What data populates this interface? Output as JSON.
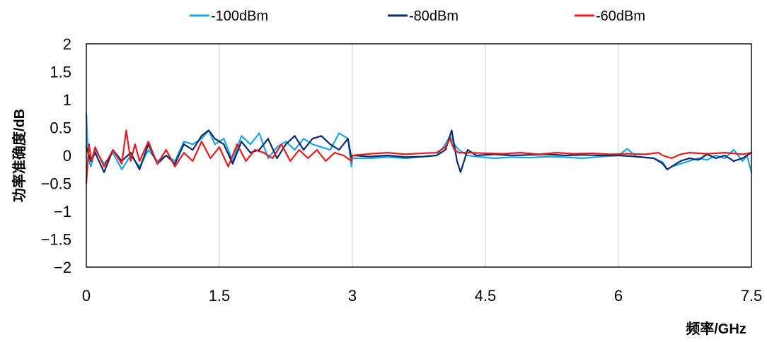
{
  "chart_data": {
    "type": "line",
    "xlabel": "频率/GHz",
    "ylabel": "功率准确度/dB",
    "xlim": [
      0,
      7.5
    ],
    "ylim": [
      -2,
      2
    ],
    "xticks": [
      0,
      1.5,
      3,
      4.5,
      6,
      7.5
    ],
    "xtick_labels": [
      "0",
      "1.5",
      "3",
      "4.5",
      "6",
      "7.5"
    ],
    "yticks": [
      2,
      1.5,
      1,
      0.5,
      0,
      -0.5,
      -1,
      -1.5,
      -2
    ],
    "ytick_labels": [
      "2",
      "1.5",
      "1",
      "0.5",
      "0",
      "−0.5",
      "−1",
      "−1.5",
      "−2"
    ],
    "grid": "vertical",
    "legend": "top",
    "series": [
      {
        "name": "-100dBm",
        "color": "#19a7e6",
        "x": [
          0,
          0.02,
          0.05,
          0.1,
          0.2,
          0.3,
          0.4,
          0.5,
          0.6,
          0.7,
          0.8,
          0.9,
          1.0,
          1.1,
          1.2,
          1.3,
          1.38,
          1.45,
          1.55,
          1.65,
          1.75,
          1.85,
          1.95,
          2.05,
          2.15,
          2.25,
          2.35,
          2.45,
          2.55,
          2.65,
          2.75,
          2.85,
          2.9,
          2.95,
          2.99,
          3.0,
          3.2,
          3.4,
          3.6,
          3.8,
          3.95,
          4.05,
          4.1,
          4.15,
          4.2,
          4.3,
          4.4,
          4.6,
          4.8,
          5.0,
          5.2,
          5.4,
          5.6,
          5.8,
          6.0,
          6.1,
          6.2,
          6.4,
          6.5,
          6.55,
          6.6,
          6.7,
          6.8,
          6.9,
          7.0,
          7.1,
          7.2,
          7.3,
          7.4,
          7.45,
          7.5
        ],
        "y": [
          0.75,
          0.0,
          -0.2,
          0.1,
          -0.15,
          0.05,
          -0.25,
          0.0,
          -0.2,
          0.1,
          -0.1,
          0.0,
          -0.1,
          0.25,
          0.2,
          0.3,
          0.45,
          0.2,
          0.3,
          -0.1,
          0.35,
          0.2,
          0.4,
          -0.05,
          0.15,
          0.25,
          0.1,
          0.3,
          0.2,
          0.15,
          0.1,
          0.4,
          0.35,
          0.3,
          -0.2,
          -0.05,
          -0.05,
          -0.03,
          -0.05,
          -0.02,
          0.0,
          0.2,
          0.35,
          0.2,
          0.1,
          0.0,
          -0.02,
          -0.05,
          -0.03,
          -0.04,
          -0.02,
          -0.03,
          -0.05,
          -0.02,
          0.0,
          0.12,
          -0.02,
          -0.05,
          -0.12,
          -0.25,
          -0.2,
          -0.15,
          -0.1,
          -0.05,
          -0.08,
          0.0,
          -0.05,
          0.1,
          -0.1,
          0.0,
          -0.3
        ]
      },
      {
        "name": "-80dBm",
        "color": "#0b2a6b",
        "x": [
          0,
          0.05,
          0.1,
          0.2,
          0.3,
          0.4,
          0.5,
          0.6,
          0.7,
          0.8,
          0.9,
          1.0,
          1.1,
          1.2,
          1.3,
          1.38,
          1.45,
          1.55,
          1.65,
          1.75,
          1.85,
          1.95,
          2.05,
          2.15,
          2.25,
          2.35,
          2.45,
          2.55,
          2.65,
          2.75,
          2.85,
          2.95,
          2.99,
          3.0,
          3.2,
          3.4,
          3.6,
          3.8,
          3.95,
          4.05,
          4.12,
          4.18,
          4.22,
          4.3,
          4.4,
          4.6,
          4.8,
          5.0,
          5.2,
          5.4,
          5.6,
          5.8,
          6.0,
          6.2,
          6.4,
          6.5,
          6.55,
          6.6,
          6.7,
          6.8,
          6.9,
          7.0,
          7.1,
          7.2,
          7.3,
          7.4,
          7.5
        ],
        "y": [
          0.15,
          -0.1,
          0.05,
          -0.3,
          0.1,
          -0.1,
          0.05,
          -0.25,
          0.2,
          -0.15,
          0.0,
          -0.15,
          0.2,
          0.1,
          0.35,
          0.45,
          0.3,
          0.2,
          -0.15,
          0.25,
          0.05,
          0.1,
          0.3,
          -0.05,
          0.2,
          0.35,
          0.1,
          0.3,
          0.35,
          0.2,
          0.1,
          0.3,
          -0.05,
          0.0,
          -0.02,
          0.0,
          -0.03,
          -0.02,
          0.0,
          0.1,
          0.45,
          -0.1,
          -0.3,
          0.1,
          0.0,
          0.02,
          0.0,
          0.01,
          0.02,
          0.0,
          0.01,
          0.0,
          0.0,
          -0.02,
          -0.05,
          -0.15,
          -0.25,
          -0.2,
          -0.1,
          -0.05,
          -0.08,
          0.02,
          -0.05,
          0.0,
          -0.1,
          -0.05,
          0.05
        ]
      },
      {
        "name": "-60dBm",
        "color": "#e81a1a",
        "x": [
          0,
          0.03,
          0.06,
          0.1,
          0.2,
          0.3,
          0.4,
          0.45,
          0.5,
          0.55,
          0.6,
          0.7,
          0.8,
          0.9,
          1.0,
          1.1,
          1.2,
          1.3,
          1.4,
          1.5,
          1.6,
          1.7,
          1.8,
          1.9,
          2.0,
          2.1,
          2.2,
          2.3,
          2.4,
          2.5,
          2.6,
          2.7,
          2.8,
          2.9,
          2.99,
          3.0,
          3.2,
          3.4,
          3.6,
          3.8,
          3.95,
          4.05,
          4.1,
          4.15,
          4.2,
          4.3,
          4.5,
          4.7,
          4.9,
          5.1,
          5.3,
          5.5,
          5.7,
          5.9,
          6.1,
          6.3,
          6.45,
          6.5,
          6.6,
          6.7,
          6.8,
          7.0,
          7.2,
          7.4,
          7.5
        ],
        "y": [
          -0.5,
          0.2,
          -0.1,
          0.15,
          -0.2,
          0.1,
          -0.15,
          0.45,
          -0.1,
          0.2,
          -0.1,
          0.25,
          -0.15,
          0.1,
          -0.2,
          0.05,
          -0.1,
          0.25,
          -0.05,
          0.15,
          -0.2,
          0.2,
          -0.1,
          0.1,
          0.05,
          -0.05,
          0.2,
          -0.1,
          0.1,
          -0.05,
          0.1,
          -0.1,
          0.05,
          0.0,
          -0.1,
          0.0,
          0.03,
          0.05,
          0.02,
          0.04,
          0.05,
          0.15,
          0.3,
          0.1,
          0.05,
          0.05,
          0.04,
          0.03,
          0.05,
          0.02,
          0.05,
          0.03,
          0.04,
          0.02,
          0.03,
          0.02,
          0.05,
          0.0,
          -0.05,
          0.02,
          0.05,
          0.03,
          0.05,
          0.02,
          0.05
        ]
      }
    ]
  }
}
